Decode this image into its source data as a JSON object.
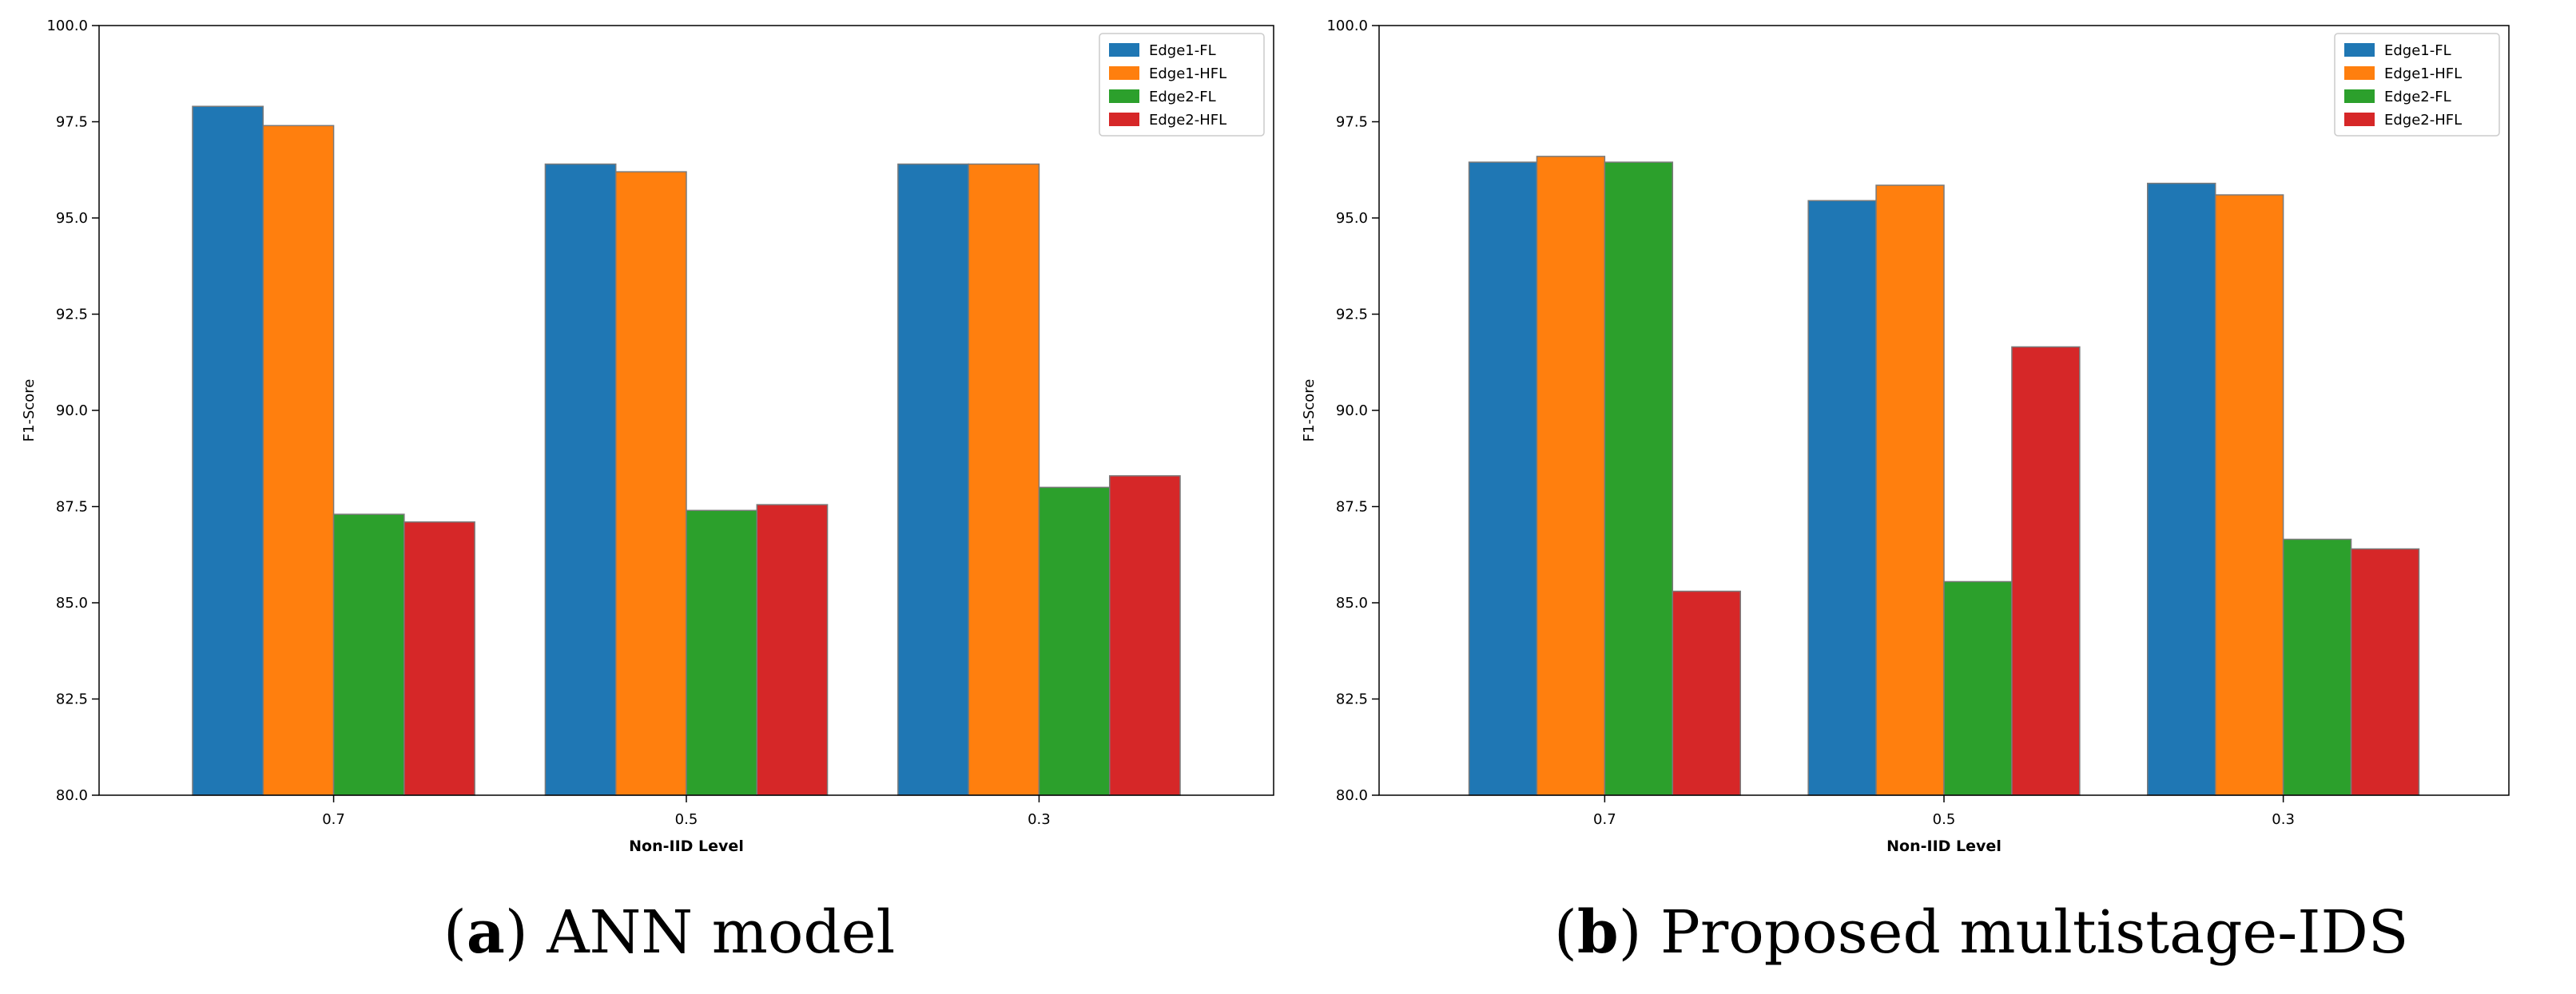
{
  "chart_data": [
    {
      "type": "bar",
      "title": "",
      "caption": {
        "label": "a",
        "text": "ANN model"
      },
      "xlabel": "Non-IID Level",
      "ylabel": "F1-Score",
      "categories": [
        "0.7",
        "0.5",
        "0.3"
      ],
      "ylim": [
        80.0,
        100.0
      ],
      "yticks": [
        "80.0",
        "82.5",
        "85.0",
        "87.5",
        "90.0",
        "92.5",
        "95.0",
        "97.5",
        "100.0"
      ],
      "legend_position": "top-right",
      "series": [
        {
          "name": "Edge1-FL",
          "color": "#1f77b4",
          "values": [
            97.9,
            96.4,
            96.4
          ]
        },
        {
          "name": "Edge1-HFL",
          "color": "#ff7f0e",
          "values": [
            97.4,
            96.2,
            96.4
          ]
        },
        {
          "name": "Edge2-FL",
          "color": "#2ca02c",
          "values": [
            87.3,
            87.4,
            88.0
          ]
        },
        {
          "name": "Edge2-HFL",
          "color": "#d62728",
          "values": [
            87.1,
            87.55,
            88.3
          ]
        }
      ]
    },
    {
      "type": "bar",
      "title": "",
      "caption": {
        "label": "b",
        "text": "Proposed multistage-IDS"
      },
      "xlabel": "Non-IID Level",
      "ylabel": "F1-Score",
      "categories": [
        "0.7",
        "0.5",
        "0.3"
      ],
      "ylim": [
        80.0,
        100.0
      ],
      "yticks": [
        "80.0",
        "82.5",
        "85.0",
        "87.5",
        "90.0",
        "92.5",
        "95.0",
        "97.5",
        "100.0"
      ],
      "legend_position": "top-right",
      "series": [
        {
          "name": "Edge1-FL",
          "color": "#1f77b4",
          "values": [
            96.45,
            95.45,
            95.9
          ]
        },
        {
          "name": "Edge1-HFL",
          "color": "#ff7f0e",
          "values": [
            96.6,
            95.85,
            95.6
          ]
        },
        {
          "name": "Edge2-FL",
          "color": "#2ca02c",
          "values": [
            96.45,
            85.55,
            86.65
          ]
        },
        {
          "name": "Edge2-HFL",
          "color": "#d62728",
          "values": [
            85.3,
            91.65,
            86.4
          ]
        }
      ]
    }
  ]
}
